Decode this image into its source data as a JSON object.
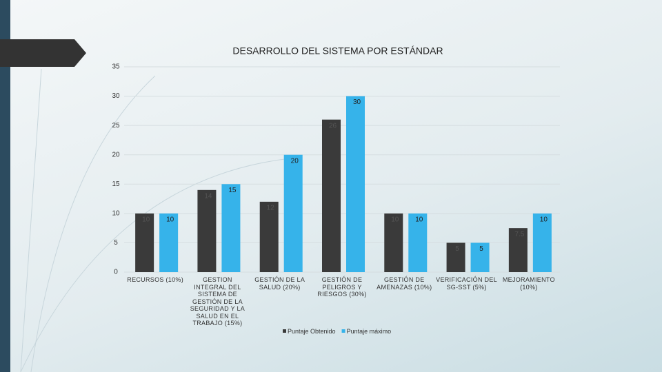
{
  "chart_data": {
    "type": "bar",
    "title": "DESARROLLO DEL SISTEMA POR ESTÁNDAR",
    "categories": [
      "RECURSOS (10%)",
      "GESTION INTEGRAL DEL SISTEMA DE GESTIÓN DE LA SEGURIDAD Y LA SALUD EN EL TRABAJO (15%)",
      "GESTIÓN DE LA SALUD (20%)",
      "GESTIÓN DE PELIGROS Y RIESGOS (30%)",
      "GESTIÓN DE AMENAZAS (10%)",
      "VERIFICACIÓN DEL SG-SST (5%)",
      "MEJORAMIENTO (10%)"
    ],
    "series": [
      {
        "name": "Puntaje Obtenido",
        "color": "#3a3a3a",
        "values": [
          10,
          14,
          12,
          26,
          10,
          5,
          7.5
        ]
      },
      {
        "name": "Puntaje máximo",
        "color": "#36b3ea",
        "values": [
          10,
          15,
          20,
          30,
          10,
          5,
          10
        ]
      }
    ],
    "ylim": [
      0,
      35
    ],
    "yticks": [
      0,
      5,
      10,
      15,
      20,
      25,
      30,
      35
    ],
    "grid": true,
    "legend": "bottom"
  }
}
